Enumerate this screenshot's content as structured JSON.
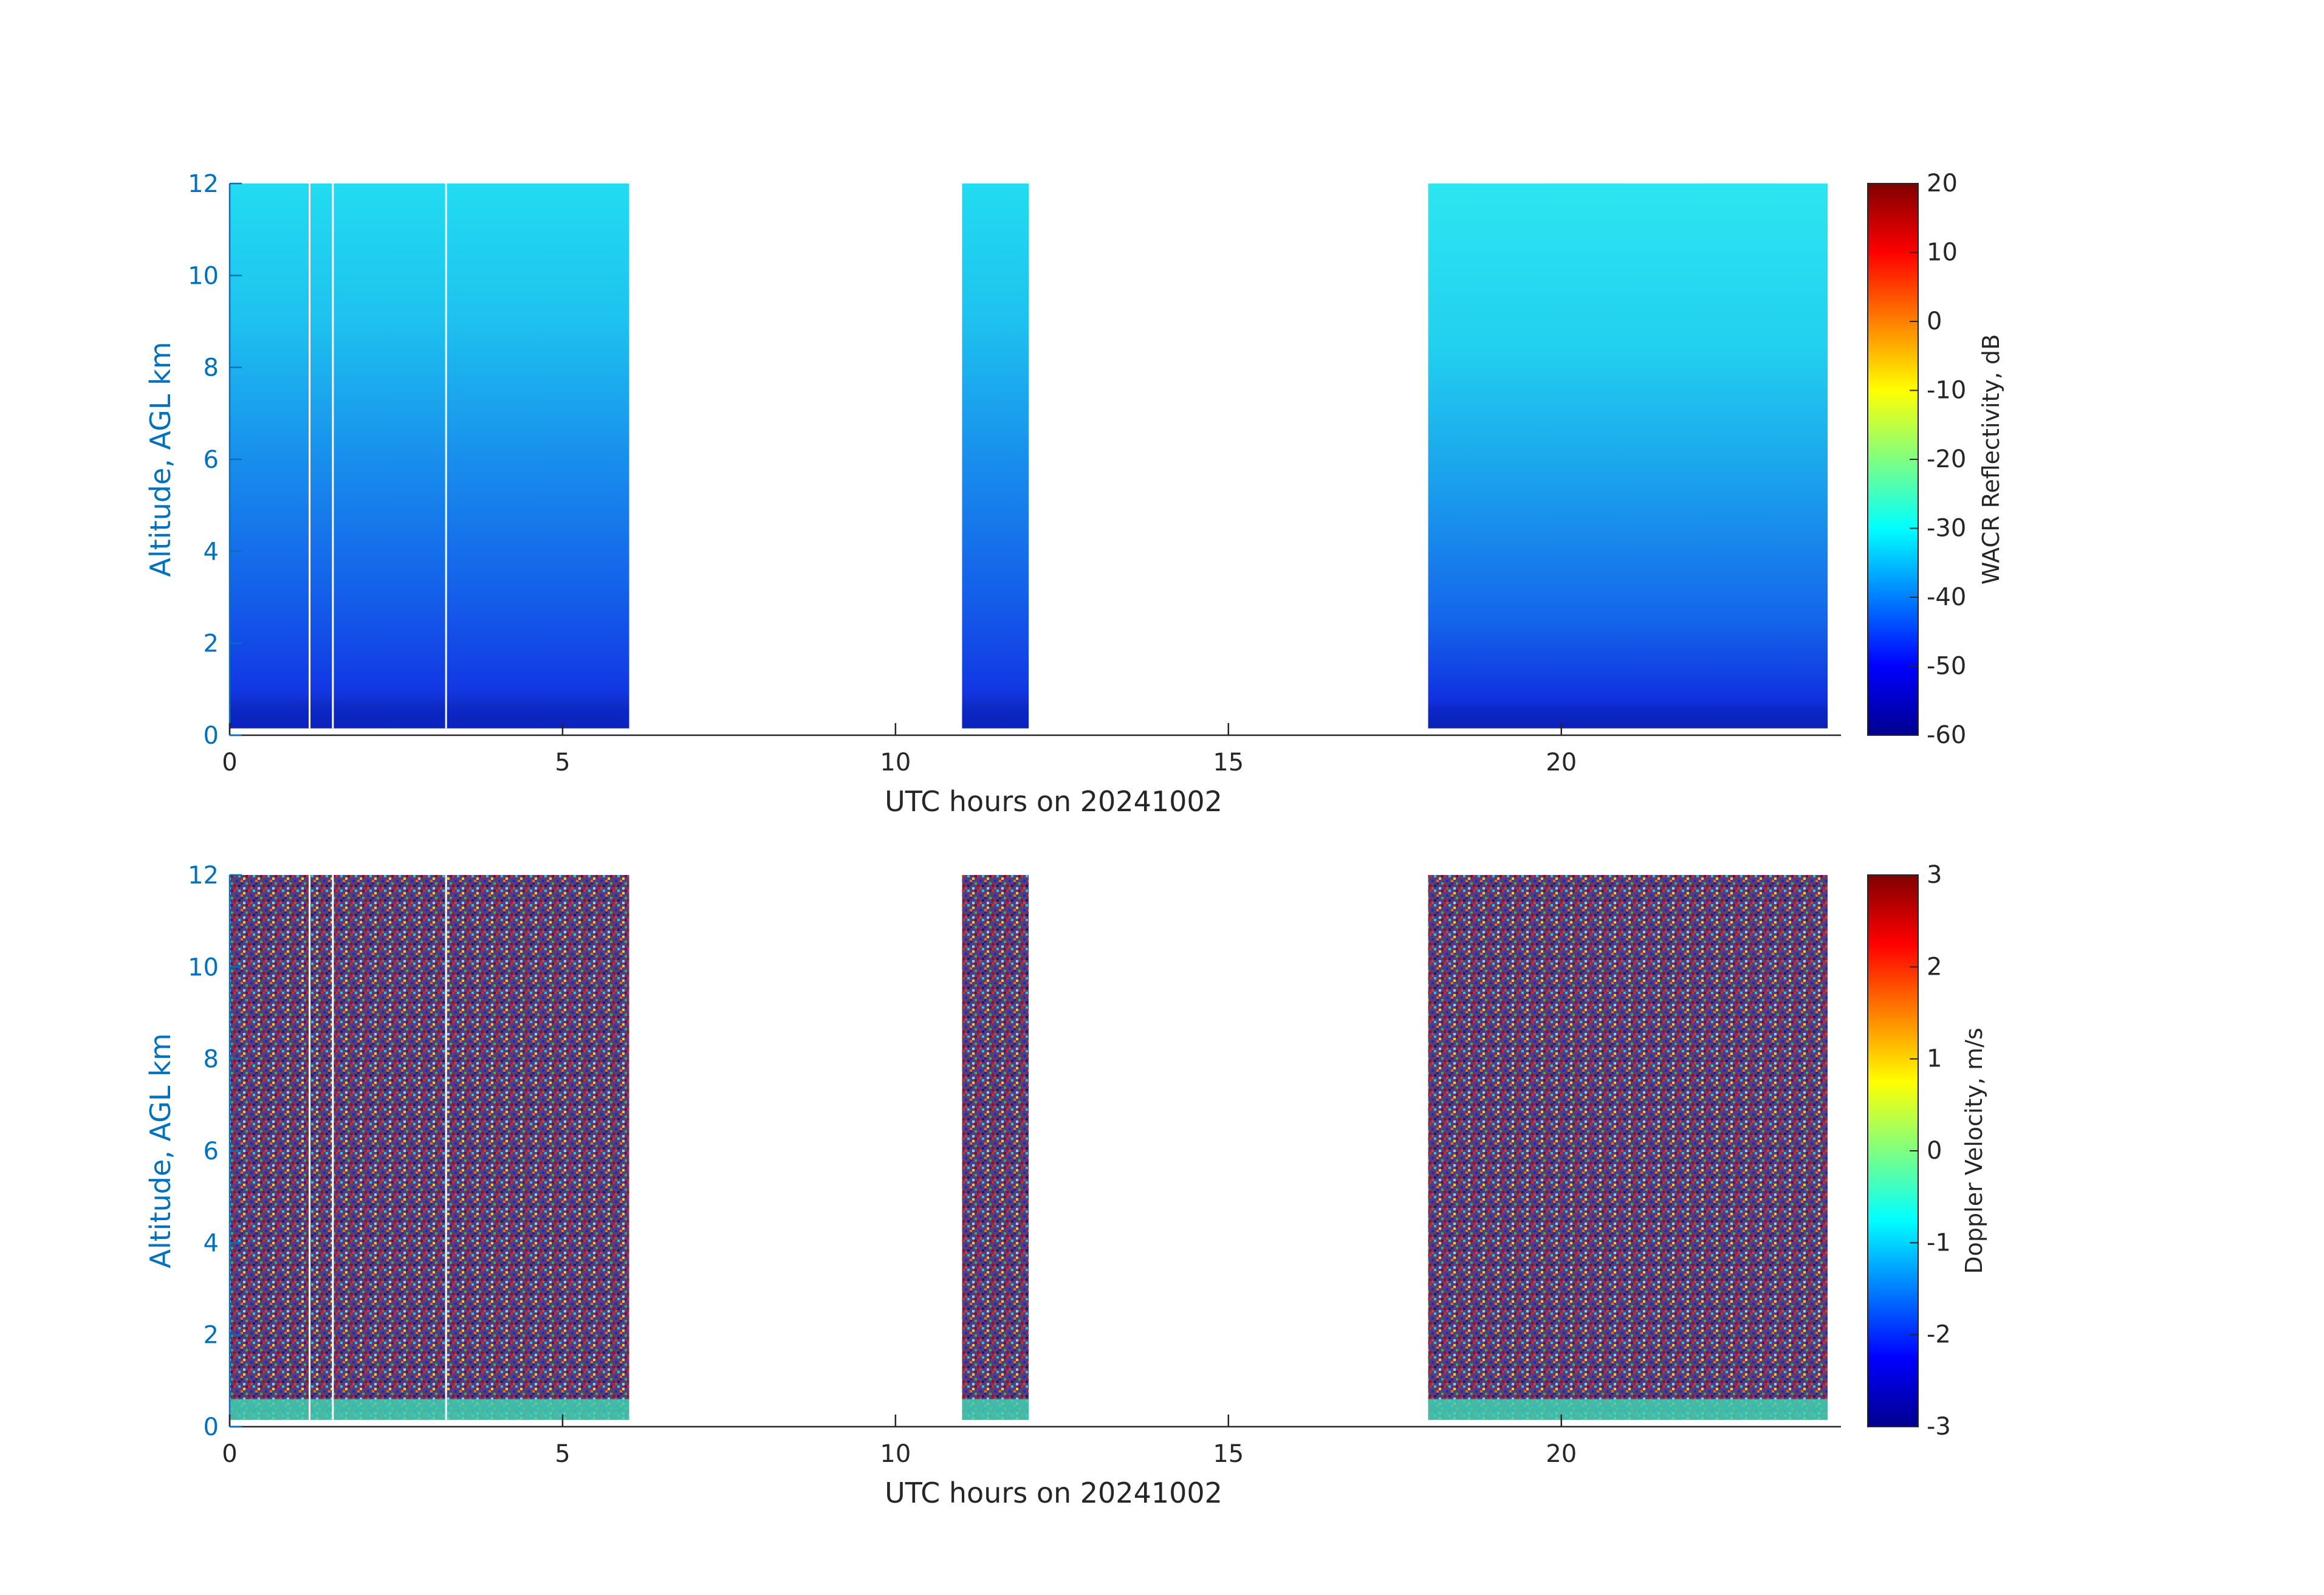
{
  "chart_data": [
    {
      "type": "heatmap",
      "xlabel": "UTC hours on 20241002",
      "ylabel": "Altitude, AGL km",
      "xlim": [
        0,
        24.2
      ],
      "ylim": [
        0,
        12
      ],
      "x_ticks": [
        0,
        5,
        10,
        15,
        20
      ],
      "y_ticks": [
        0,
        2,
        4,
        6,
        8,
        10,
        12
      ],
      "colormap": "jet",
      "colorbar": {
        "label": "WACR Reflectivity, dB",
        "range": [
          -60,
          20
        ],
        "ticks": [
          20,
          10,
          0,
          -10,
          -20,
          -30,
          -40,
          -50,
          -60
        ]
      },
      "data_segments": [
        {
          "start_hour": 0.0,
          "end_hour": 6.0
        },
        {
          "start_hour": 11.0,
          "end_hour": 12.0
        },
        {
          "start_hour": 18.0,
          "end_hour": 24.0
        }
      ],
      "field_summary": {
        "top_of_column_dB": -30,
        "near_surface_dB": -55,
        "bottom_echo_km": 0.15
      },
      "data_gaps_hours": [
        1.2,
        1.55,
        3.25
      ]
    },
    {
      "type": "heatmap",
      "xlabel": "UTC hours on 20241002",
      "ylabel": "Altitude, AGL km",
      "xlim": [
        0,
        24.2
      ],
      "ylim": [
        0,
        12
      ],
      "x_ticks": [
        0,
        5,
        10,
        15,
        20
      ],
      "y_ticks": [
        0,
        2,
        4,
        6,
        8,
        10,
        12
      ],
      "colormap": "jet",
      "colorbar": {
        "label": "Doppler Velocity, m/s",
        "range": [
          -3,
          3
        ],
        "ticks": [
          3,
          2,
          1,
          0,
          -1,
          -2,
          -3
        ]
      },
      "data_segments": [
        {
          "start_hour": 0.0,
          "end_hour": 6.0
        },
        {
          "start_hour": 11.0,
          "end_hour": 12.0
        },
        {
          "start_hour": 18.0,
          "end_hour": 24.0
        }
      ],
      "field_summary": {
        "noise": "random -3 to 3 m/s",
        "near_surface_velocity_ms": -0.5
      },
      "data_gaps_hours": [
        1.2,
        1.55,
        3.25
      ]
    }
  ],
  "colors": {
    "ytick": "#0072bd",
    "xtick": "#262626",
    "axis": "#262626",
    "background": "#ffffff"
  }
}
